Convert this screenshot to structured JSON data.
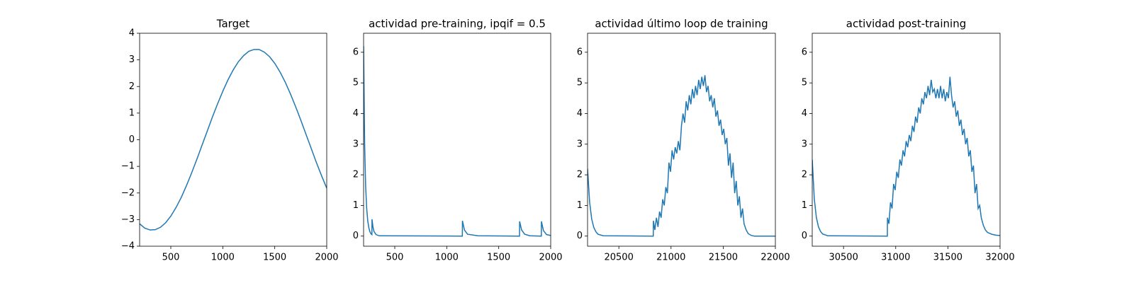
{
  "chart_data": [
    {
      "type": "line",
      "title": "Target",
      "color": "#1f77b4",
      "xlim": [
        200,
        2000
      ],
      "ylim": [
        -4,
        4
      ],
      "xticks": [
        500,
        1000,
        1500,
        2000
      ],
      "yticks": [
        {
          "value": -4,
          "label": "−4"
        },
        {
          "value": -3,
          "label": "−3"
        },
        {
          "value": -2,
          "label": "−2"
        },
        {
          "value": -1,
          "label": "−1"
        },
        0,
        1,
        2,
        3,
        4
      ],
      "x": [
        200,
        250,
        300,
        350,
        400,
        450,
        500,
        550,
        600,
        650,
        700,
        750,
        800,
        850,
        900,
        950,
        1000,
        1050,
        1100,
        1150,
        1200,
        1250,
        1300,
        1350,
        1400,
        1450,
        1500,
        1550,
        1600,
        1650,
        1700,
        1750,
        1800,
        1850,
        1900,
        1950,
        2000
      ],
      "values": [
        -3.16,
        -3.32,
        -3.39,
        -3.38,
        -3.29,
        -3.12,
        -2.87,
        -2.55,
        -2.17,
        -1.73,
        -1.25,
        -0.74,
        -0.21,
        0.32,
        0.85,
        1.35,
        1.82,
        2.25,
        2.62,
        2.93,
        3.16,
        3.32,
        3.39,
        3.39,
        3.29,
        3.12,
        2.87,
        2.55,
        2.17,
        1.73,
        1.25,
        0.74,
        0.21,
        -0.32,
        -0.85,
        -1.35,
        -1.82
      ]
    },
    {
      "type": "line",
      "title": "actividad pre-training, ipqif = 0.5",
      "color": "#1f77b4",
      "xlim": [
        200,
        2000
      ],
      "ylim": [
        -0.33,
        6.62
      ],
      "xticks": [
        500,
        1000,
        1500,
        2000
      ],
      "yticks": [
        0,
        1,
        2,
        3,
        4,
        5,
        6
      ],
      "x": [
        200,
        210,
        220,
        230,
        240,
        250,
        260,
        270,
        280,
        281,
        290,
        300,
        320,
        350,
        1150,
        1151,
        1170,
        1200,
        1300,
        1700,
        1701,
        1720,
        1750,
        1800,
        1910,
        1911,
        1930,
        1960,
        2000
      ],
      "values": [
        6.2,
        3.0,
        1.6,
        0.9,
        0.5,
        0.28,
        0.15,
        0.08,
        0.05,
        0.55,
        0.3,
        0.15,
        0.05,
        0.01,
        0.0,
        0.5,
        0.2,
        0.06,
        0.01,
        0.0,
        0.48,
        0.2,
        0.06,
        0.01,
        0.0,
        0.48,
        0.18,
        0.05,
        0.02
      ]
    },
    {
      "type": "line",
      "title": "actividad último loop de training",
      "color": "#1f77b4",
      "xlim": [
        20200,
        22000
      ],
      "ylim": [
        -0.33,
        6.62
      ],
      "xticks": [
        20500,
        21000,
        21500,
        22000
      ],
      "yticks": [
        0,
        1,
        2,
        3,
        4,
        5,
        6
      ],
      "x": [
        20200,
        20220,
        20240,
        20260,
        20280,
        20300,
        20350,
        20830,
        20831,
        20845,
        20860,
        20875,
        20890,
        20905,
        20920,
        20935,
        20950,
        20965,
        20980,
        20995,
        21010,
        21025,
        21040,
        21055,
        21070,
        21085,
        21100,
        21115,
        21130,
        21145,
        21160,
        21175,
        21190,
        21205,
        21220,
        21235,
        21250,
        21265,
        21280,
        21295,
        21310,
        21325,
        21340,
        21355,
        21370,
        21385,
        21400,
        21415,
        21430,
        21445,
        21460,
        21475,
        21490,
        21505,
        21520,
        21535,
        21550,
        21565,
        21580,
        21595,
        21610,
        21625,
        21640,
        21655,
        21670,
        21685,
        21700,
        21720,
        21740,
        21770,
        21800,
        22000
      ],
      "values": [
        2.2,
        1.1,
        0.55,
        0.28,
        0.14,
        0.06,
        0.01,
        0.0,
        0.5,
        0.2,
        0.6,
        0.3,
        0.8,
        0.6,
        1.2,
        1.0,
        1.6,
        1.4,
        2.4,
        2.1,
        2.8,
        2.5,
        2.9,
        2.7,
        3.1,
        2.8,
        3.6,
        4.0,
        3.7,
        4.4,
        4.1,
        4.6,
        4.3,
        4.8,
        4.5,
        4.9,
        4.6,
        5.1,
        4.8,
        5.2,
        4.9,
        5.25,
        4.7,
        4.9,
        4.4,
        4.6,
        4.2,
        4.5,
        3.9,
        4.1,
        3.6,
        3.8,
        3.3,
        3.5,
        3.0,
        3.2,
        2.3,
        2.7,
        1.9,
        2.4,
        1.4,
        1.8,
        1.0,
        1.3,
        0.6,
        0.9,
        0.4,
        0.2,
        0.08,
        0.02,
        0.0,
        0.0
      ]
    },
    {
      "type": "line",
      "title": "actividad post-training",
      "color": "#1f77b4",
      "xlim": [
        30200,
        32000
      ],
      "ylim": [
        -0.33,
        6.62
      ],
      "xticks": [
        30500,
        31000,
        31500,
        32000
      ],
      "yticks": [
        0,
        1,
        2,
        3,
        4,
        5,
        6
      ],
      "x": [
        30200,
        30220,
        30240,
        30260,
        30280,
        30300,
        30350,
        30920,
        30921,
        30935,
        30950,
        30965,
        30980,
        30995,
        31010,
        31025,
        31040,
        31055,
        31070,
        31085,
        31100,
        31115,
        31130,
        31145,
        31160,
        31175,
        31190,
        31205,
        31220,
        31235,
        31250,
        31265,
        31280,
        31295,
        31310,
        31325,
        31340,
        31355,
        31370,
        31385,
        31400,
        31415,
        31430,
        31445,
        31460,
        31475,
        31490,
        31505,
        31520,
        31535,
        31550,
        31565,
        31580,
        31595,
        31610,
        31625,
        31640,
        31655,
        31670,
        31685,
        31700,
        31715,
        31730,
        31745,
        31760,
        31775,
        31790,
        31805,
        31820,
        31840,
        31860,
        31880,
        31920,
        31960,
        32000
      ],
      "values": [
        2.5,
        1.2,
        0.6,
        0.3,
        0.15,
        0.07,
        0.01,
        0.0,
        0.6,
        0.4,
        1.1,
        0.9,
        1.7,
        1.5,
        2.1,
        1.9,
        2.5,
        2.3,
        2.8,
        2.6,
        3.1,
        2.9,
        3.3,
        3.1,
        3.6,
        3.4,
        3.9,
        3.7,
        4.2,
        4.0,
        4.5,
        4.3,
        4.7,
        4.5,
        4.9,
        4.6,
        5.1,
        4.7,
        4.8,
        4.5,
        4.8,
        4.5,
        4.9,
        4.5,
        4.8,
        4.4,
        4.7,
        4.5,
        5.2,
        4.6,
        4.2,
        4.4,
        3.9,
        4.1,
        3.6,
        3.8,
        3.3,
        3.5,
        3.0,
        3.2,
        2.6,
        2.8,
        2.1,
        2.3,
        1.4,
        1.7,
        0.9,
        1.0,
        0.6,
        0.35,
        0.2,
        0.12,
        0.06,
        0.03,
        0.02
      ]
    }
  ]
}
